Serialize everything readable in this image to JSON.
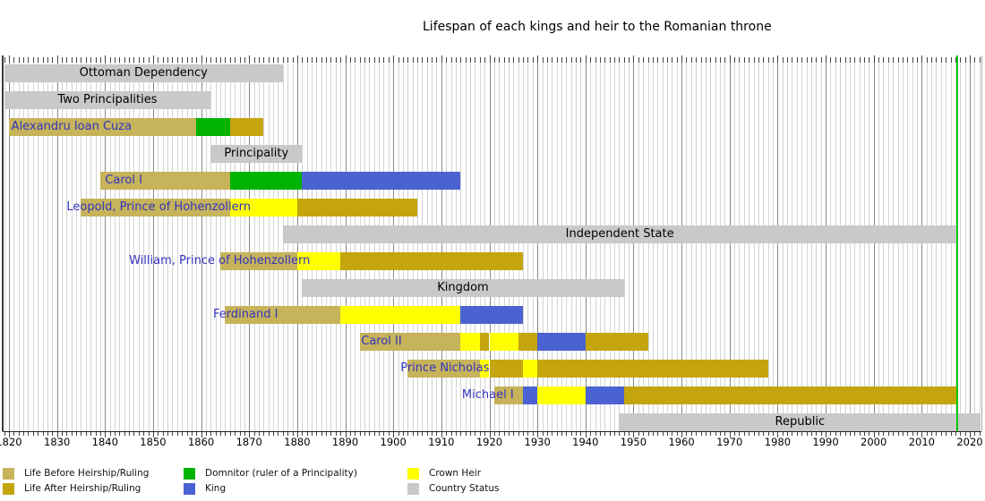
{
  "chart_data": {
    "type": "bar",
    "subtype": "timeline-gantt",
    "title": "Lifespan of each kings and heir to the Romanian throne",
    "x_axis": {
      "range": [
        1819,
        2022.3
      ],
      "tick_interval": 10,
      "ticks": [
        "1820",
        "1830",
        "1840",
        "1850",
        "1860",
        "1870",
        "1880",
        "1890",
        "1900",
        "1910",
        "1920",
        "1930",
        "1940",
        "1950",
        "1960",
        "1970",
        "1980",
        "1990",
        "2000",
        "2010",
        "2020"
      ]
    },
    "present_line": {
      "year": 2017.3,
      "color": "#00c800"
    },
    "colors": {
      "before": "#c6b35a",
      "after": "#c4a50e",
      "heir": "#ffff00",
      "domnitor": "#00b303",
      "king": "#4a62d2",
      "status": "#c9c9c9",
      "person_label": "#3333c2",
      "status_label": "#000000"
    },
    "legend": [
      {
        "key": "before",
        "label": "Life Before Heirship/Ruling"
      },
      {
        "key": "after",
        "label": "Life After Heirship/Ruling"
      },
      {
        "key": "domnitor",
        "label": "Domnitor (ruler of a Principality)"
      },
      {
        "key": "king",
        "label": "King"
      },
      {
        "key": "heir",
        "label": "Crown Heir"
      },
      {
        "key": "status",
        "label": "Country Status"
      }
    ],
    "rows": [
      {
        "type": "status",
        "label": "Ottoman Dependency",
        "from": 1819,
        "to": 1877
      },
      {
        "type": "status",
        "label": "Two Principalities",
        "from": 1819,
        "to": 1862
      },
      {
        "type": "person",
        "label": "Alexandru Ioan Cuza",
        "label_year": 1820.5,
        "segments": [
          {
            "kind": "before",
            "from": 1820,
            "to": 1859
          },
          {
            "kind": "domnitor",
            "from": 1859,
            "to": 1866
          },
          {
            "kind": "after",
            "from": 1866,
            "to": 1873
          }
        ]
      },
      {
        "type": "status",
        "label": "Principality",
        "from": 1862,
        "to": 1881
      },
      {
        "type": "person",
        "label": "Carol I",
        "label_year": 1840,
        "segments": [
          {
            "kind": "before",
            "from": 1839,
            "to": 1866
          },
          {
            "kind": "domnitor",
            "from": 1866,
            "to": 1881
          },
          {
            "kind": "king",
            "from": 1881,
            "to": 1914
          }
        ]
      },
      {
        "type": "person",
        "label": "Leopold, Prince of Hohenzollern",
        "label_year": 1832,
        "segments": [
          {
            "kind": "before",
            "from": 1835,
            "to": 1866
          },
          {
            "kind": "heir",
            "from": 1866,
            "to": 1880
          },
          {
            "kind": "after",
            "from": 1880,
            "to": 1905
          }
        ]
      },
      {
        "type": "status",
        "label": "Independent State",
        "from": 1877,
        "to": 2017.3
      },
      {
        "type": "person",
        "label": "William, Prince of Hohenzollern",
        "label_year": 1845,
        "segments": [
          {
            "kind": "before",
            "from": 1864,
            "to": 1880
          },
          {
            "kind": "heir",
            "from": 1880,
            "to": 1889
          },
          {
            "kind": "after",
            "from": 1889,
            "to": 1927
          }
        ]
      },
      {
        "type": "status",
        "label": "Kingdom",
        "from": 1881,
        "to": 1948
      },
      {
        "type": "person",
        "label": "Ferdinand I",
        "label_year": 1862.5,
        "segments": [
          {
            "kind": "before",
            "from": 1865,
            "to": 1889
          },
          {
            "kind": "heir",
            "from": 1889,
            "to": 1914
          },
          {
            "kind": "king",
            "from": 1914,
            "to": 1927
          }
        ]
      },
      {
        "type": "person",
        "label": "Carol II",
        "label_year": 1893.3,
        "segments": [
          {
            "kind": "before",
            "from": 1893,
            "to": 1914
          },
          {
            "kind": "heir",
            "from": 1914,
            "to": 1918
          },
          {
            "kind": "after",
            "from": 1918,
            "to": 1920
          },
          {
            "kind": "heir",
            "from": 1920,
            "to": 1926
          },
          {
            "kind": "after",
            "from": 1926,
            "to": 1930
          },
          {
            "kind": "king",
            "from": 1930,
            "to": 1940
          },
          {
            "kind": "after",
            "from": 1940,
            "to": 1953
          }
        ]
      },
      {
        "type": "person",
        "label": "Prince Nicholas",
        "label_year": 1901.5,
        "segments": [
          {
            "kind": "before",
            "from": 1903,
            "to": 1918
          },
          {
            "kind": "heir",
            "from": 1918,
            "to": 1920
          },
          {
            "kind": "after",
            "from": 1920,
            "to": 1927
          },
          {
            "kind": "heir",
            "from": 1927,
            "to": 1930
          },
          {
            "kind": "after",
            "from": 1930,
            "to": 1978
          }
        ]
      },
      {
        "type": "person",
        "label": "Michael I",
        "label_year": 1914.3,
        "segments": [
          {
            "kind": "before",
            "from": 1921,
            "to": 1927
          },
          {
            "kind": "king",
            "from": 1927,
            "to": 1930
          },
          {
            "kind": "heir",
            "from": 1930,
            "to": 1940
          },
          {
            "kind": "king",
            "from": 1940,
            "to": 1948
          },
          {
            "kind": "after",
            "from": 1948,
            "to": 2017.3
          }
        ]
      },
      {
        "type": "status",
        "label": "Republic",
        "from": 1947,
        "to": 2022.3
      }
    ]
  }
}
